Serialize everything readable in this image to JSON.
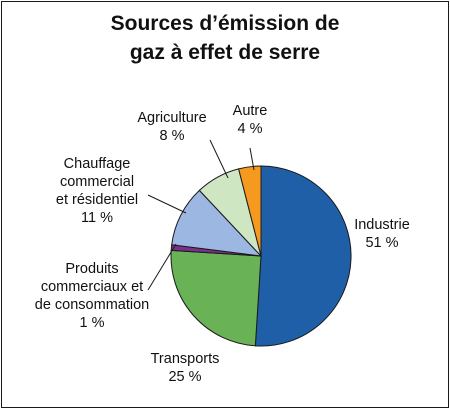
{
  "chart_data": {
    "type": "pie",
    "title_lines": [
      "Sources d’émission de",
      "gaz à effet de serre"
    ],
    "slices": [
      {
        "label_lines": [
          "Industrie",
          "51 %"
        ],
        "value": 51,
        "color": "#1f5fa8"
      },
      {
        "label_lines": [
          "Transports",
          "25 %"
        ],
        "value": 25,
        "color": "#6ab256"
      },
      {
        "label_lines": [
          "Produits",
          "commerciaux et",
          "de consommation",
          "1 %"
        ],
        "value": 1,
        "color": "#7b2f8c"
      },
      {
        "label_lines": [
          "Chauffage",
          "commercial",
          "et résidentiel",
          "11 %"
        ],
        "value": 11,
        "color": "#9db7e3"
      },
      {
        "label_lines": [
          "Agriculture",
          "8 %"
        ],
        "value": 8,
        "color": "#cfe6c3"
      },
      {
        "label_lines": [
          "Autre",
          "4 %"
        ],
        "value": 4,
        "color": "#f59a1f"
      }
    ]
  }
}
